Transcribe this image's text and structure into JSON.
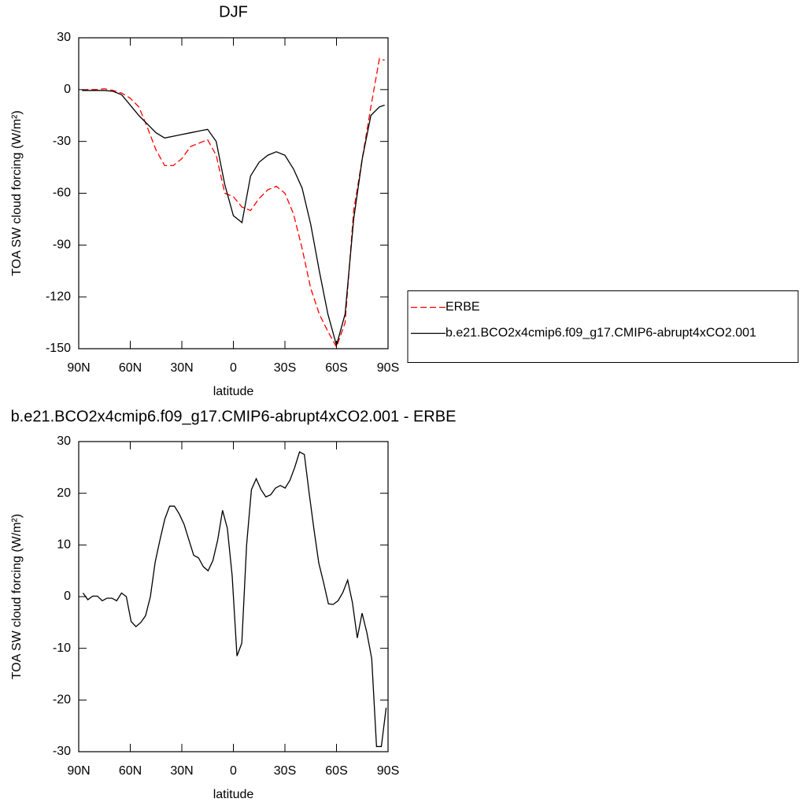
{
  "chart_data": [
    {
      "type": "line",
      "title": "DJF",
      "xlabel": "latitude",
      "ylabel": "TOA SW cloud forcing (W/m²)",
      "x": [
        88,
        85,
        80,
        75,
        70,
        65,
        60,
        55,
        50,
        45,
        40,
        35,
        30,
        25,
        20,
        15,
        10,
        5,
        0,
        -5,
        -10,
        -15,
        -20,
        -25,
        -30,
        -35,
        -40,
        -45,
        -50,
        -55,
        -60,
        -65,
        -70,
        -75,
        -80,
        -85,
        -88
      ],
      "series": [
        {
          "name": "ERBE",
          "color": "#ff0000",
          "linestyle": "dashed",
          "values": [
            -0.5,
            0,
            0,
            0.5,
            -0.5,
            -2,
            -5,
            -10,
            -22,
            -35,
            -44,
            -44,
            -40,
            -33,
            -31,
            -29,
            -38,
            -60,
            -62,
            -68,
            -70,
            -63,
            -58,
            -56,
            -60,
            -72,
            -92,
            -115,
            -130,
            -140,
            -149,
            -135,
            -70,
            -40,
            -10,
            18,
            17
          ]
        },
        {
          "name": "b.e21.BCO2x4cmip6.f09_g17.CMIP6-abrupt4xCO2.001",
          "color": "#000000",
          "linestyle": "solid",
          "values": [
            -0.5,
            -0.5,
            -0.5,
            -0.5,
            -1,
            -3,
            -9,
            -15,
            -20,
            -25,
            -28,
            -27,
            -26,
            -25,
            -24,
            -23,
            -30,
            -55,
            -73,
            -77,
            -50,
            -42,
            -38,
            -36,
            -38,
            -46,
            -57,
            -78,
            -105,
            -130,
            -148,
            -130,
            -75,
            -40,
            -15,
            -10,
            -9
          ]
        }
      ],
      "xlim": [
        90,
        -90
      ],
      "xticks": [
        {
          "value": 90,
          "label": "90N"
        },
        {
          "value": 60,
          "label": "60N"
        },
        {
          "value": 30,
          "label": "30N"
        },
        0,
        {
          "value": -30,
          "label": "30S"
        },
        {
          "value": -60,
          "label": "60S"
        },
        {
          "value": -90,
          "label": "90S"
        }
      ],
      "ylim": [
        -150,
        30
      ],
      "yticks": [
        30,
        0,
        -30,
        -60,
        -90,
        -120,
        -150
      ],
      "legend": "right"
    },
    {
      "type": "line",
      "title": "b.e21.BCO2x4cmip6.f09_g17.CMIP6-abrupt4xCO2.001 - ERBE",
      "xlabel": "latitude",
      "ylabel": "TOA SW cloud forcing (W/m²)",
      "x": [
        87.5,
        84.7,
        81.9,
        79.1,
        76.3,
        73.5,
        70.7,
        67.9,
        65.1,
        62.3,
        59.5,
        56.7,
        53.9,
        51.1,
        48.3,
        45.5,
        42.7,
        39.9,
        37.1,
        34.3,
        31.5,
        28.7,
        25.9,
        23.1,
        20.3,
        17.5,
        14.7,
        11.9,
        9.1,
        6.3,
        3.5,
        0.7,
        -2.1,
        -4.9,
        -7.7,
        -10.5,
        -13.3,
        -16.1,
        -18.9,
        -21.7,
        -24.5,
        -27.3,
        -30.1,
        -32.9,
        -35.7,
        -38.5,
        -41.3,
        -44.1,
        -46.9,
        -49.7,
        -52.5,
        -55.3,
        -58.1,
        -60.9,
        -63.7,
        -66.5,
        -69.3,
        -72.1,
        -74.9,
        -77.7,
        -80.5,
        -83.3,
        -86.1,
        -88.9
      ],
      "series": [
        {
          "color": "#000000",
          "linestyle": "solid",
          "values": [
            0.7,
            -0.6,
            0.1,
            0.1,
            -0.8,
            -0.3,
            -0.3,
            -0.8,
            0.7,
            0,
            -4.8,
            -5.8,
            -5,
            -3.7,
            0,
            6.7,
            11,
            15,
            17.5,
            17.5,
            16,
            14,
            11,
            8,
            7.5,
            5.8,
            5,
            7,
            11,
            16.7,
            13.2,
            4,
            -11.5,
            -9,
            10,
            20.7,
            22.8,
            20.7,
            19.3,
            19.7,
            21,
            21.5,
            21,
            22.5,
            25,
            28,
            27.5,
            20,
            13,
            6.5,
            2.7,
            -1.4,
            -1.5,
            -0.8,
            0.8,
            3.2,
            -1.2,
            -8,
            -3.2,
            -7,
            -12,
            -29,
            -29,
            -21.5
          ]
        }
      ],
      "xlim": [
        90,
        -90
      ],
      "xticks": [
        {
          "value": 90,
          "label": "90N"
        },
        {
          "value": 60,
          "label": "60N"
        },
        {
          "value": 30,
          "label": "30N"
        },
        0,
        {
          "value": -30,
          "label": "30S"
        },
        {
          "value": -60,
          "label": "60S"
        },
        {
          "value": -90,
          "label": "90S"
        }
      ],
      "ylim": [
        -30,
        30
      ],
      "yticks": [
        30,
        20,
        10,
        0,
        -10,
        -20,
        -30
      ]
    }
  ]
}
